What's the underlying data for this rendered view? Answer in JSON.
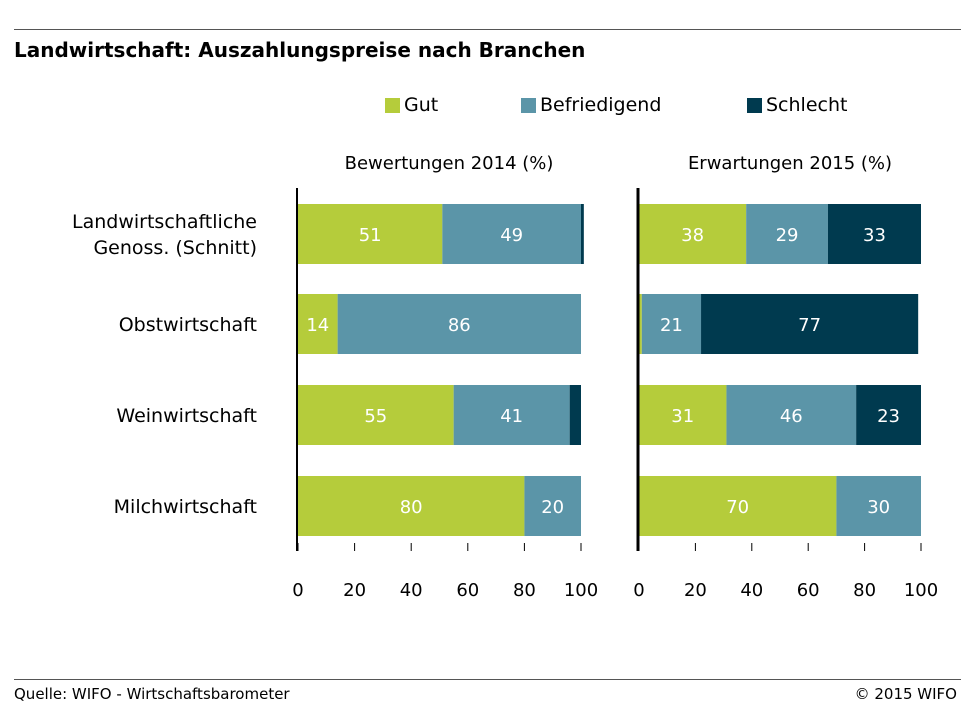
{
  "title": "Landwirtschaft: Auszahlungspreise nach Branchen",
  "source": "Quelle: WIFO - Wirtschaftsbarometer",
  "copyright": "© 2015 WIFO",
  "colors": {
    "Gut": "#b5cc3b",
    "Befriedigend": "#5b95a8",
    "Schlecht": "#003a4f"
  },
  "legend": [
    {
      "label": "Gut",
      "color": "#b5cc3b"
    },
    {
      "label": "Befriedigend",
      "color": "#5b95a8"
    },
    {
      "label": "Schlecht",
      "color": "#003a4f"
    }
  ],
  "chart_data": [
    {
      "type": "bar",
      "orientation": "horizontal",
      "stacked": true,
      "title": "Bewertungen 2014 (%)",
      "categories": [
        [
          "Landwirtschaftliche",
          "Genoss. (Schnitt)"
        ],
        [
          "Obstwirtschaft"
        ],
        [
          "Weinwirtschaft"
        ],
        [
          "Milchwirtschaft"
        ]
      ],
      "series": [
        {
          "name": "Gut",
          "values": [
            51,
            14,
            55,
            80
          ]
        },
        {
          "name": "Befriedigend",
          "values": [
            49,
            86,
            41,
            20
          ]
        },
        {
          "name": "Schlecht",
          "values": [
            1,
            0,
            4,
            0
          ]
        }
      ],
      "data_labels": [
        [
          "51",
          "49",
          ""
        ],
        [
          "14",
          "86",
          ""
        ],
        [
          "55",
          "41",
          ""
        ],
        [
          "80",
          "20",
          ""
        ]
      ],
      "xlim": [
        0,
        100
      ],
      "xticks": [
        "0",
        "20",
        "40",
        "60",
        "80",
        "100"
      ],
      "legend": "top"
    },
    {
      "type": "bar",
      "orientation": "horizontal",
      "stacked": true,
      "title": "Erwartungen 2015 (%)",
      "categories": [
        [
          "Landwirtschaftliche",
          "Genoss. (Schnitt)"
        ],
        [
          "Obstwirtschaft"
        ],
        [
          "Weinwirtschaft"
        ],
        [
          "Milchwirtschaft"
        ]
      ],
      "series": [
        {
          "name": "Gut",
          "values": [
            38,
            1,
            31,
            70
          ]
        },
        {
          "name": "Befriedigend",
          "values": [
            29,
            21,
            46,
            30
          ]
        },
        {
          "name": "Schlecht",
          "values": [
            33,
            77,
            23,
            0
          ]
        }
      ],
      "data_labels": [
        [
          "38",
          "29",
          "33"
        ],
        [
          "",
          "21",
          "77"
        ],
        [
          "31",
          "46",
          "23"
        ],
        [
          "70",
          "30",
          ""
        ]
      ],
      "xlim": [
        0,
        100
      ],
      "xticks": [
        "0",
        "20",
        "40",
        "60",
        "80",
        "100"
      ],
      "legend": "top"
    }
  ]
}
